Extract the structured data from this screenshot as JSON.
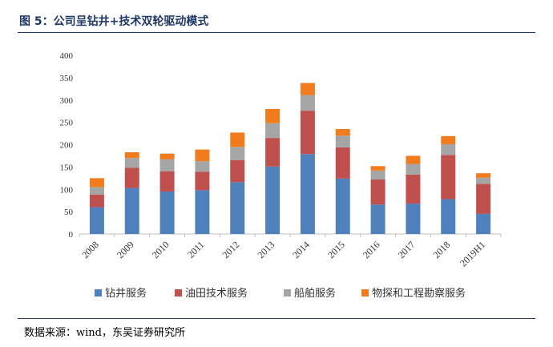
{
  "figure_title": "图 5：公司呈钻井+技术双轮驱动模式",
  "source_text": "数据来源：wind，东吴证券研究所",
  "chart_data": {
    "type": "bar",
    "stacked": true,
    "title": "",
    "xlabel": "",
    "ylabel": "",
    "categories": [
      "2008",
      "2009",
      "2010",
      "2011",
      "2012",
      "2013",
      "2014",
      "2015",
      "2016",
      "2017",
      "2018",
      "2019H1"
    ],
    "ylim": [
      0,
      400
    ],
    "yticks": [
      0,
      50,
      100,
      150,
      200,
      250,
      300,
      350,
      400
    ],
    "grid": false,
    "legend_position": "bottom",
    "series": [
      {
        "name": "钻井服务",
        "color": "#4f81bd",
        "values": [
          60,
          103,
          95,
          98,
          116,
          151,
          179,
          124,
          66,
          68,
          78,
          45
        ]
      },
      {
        "name": "油田技术服务",
        "color": "#c0504d",
        "values": [
          28,
          45,
          45,
          41,
          49,
          64,
          97,
          70,
          56,
          65,
          99,
          67
        ]
      },
      {
        "name": "船舶服务",
        "color": "#a5a5a5",
        "values": [
          17,
          22,
          27,
          24,
          30,
          33,
          35,
          26,
          20,
          24,
          24,
          14
        ]
      },
      {
        "name": "物探和工程勘察服务",
        "color": "#f07c1e",
        "values": [
          20,
          13,
          13,
          26,
          32,
          32,
          27,
          15,
          10,
          18,
          18,
          10
        ]
      }
    ]
  }
}
